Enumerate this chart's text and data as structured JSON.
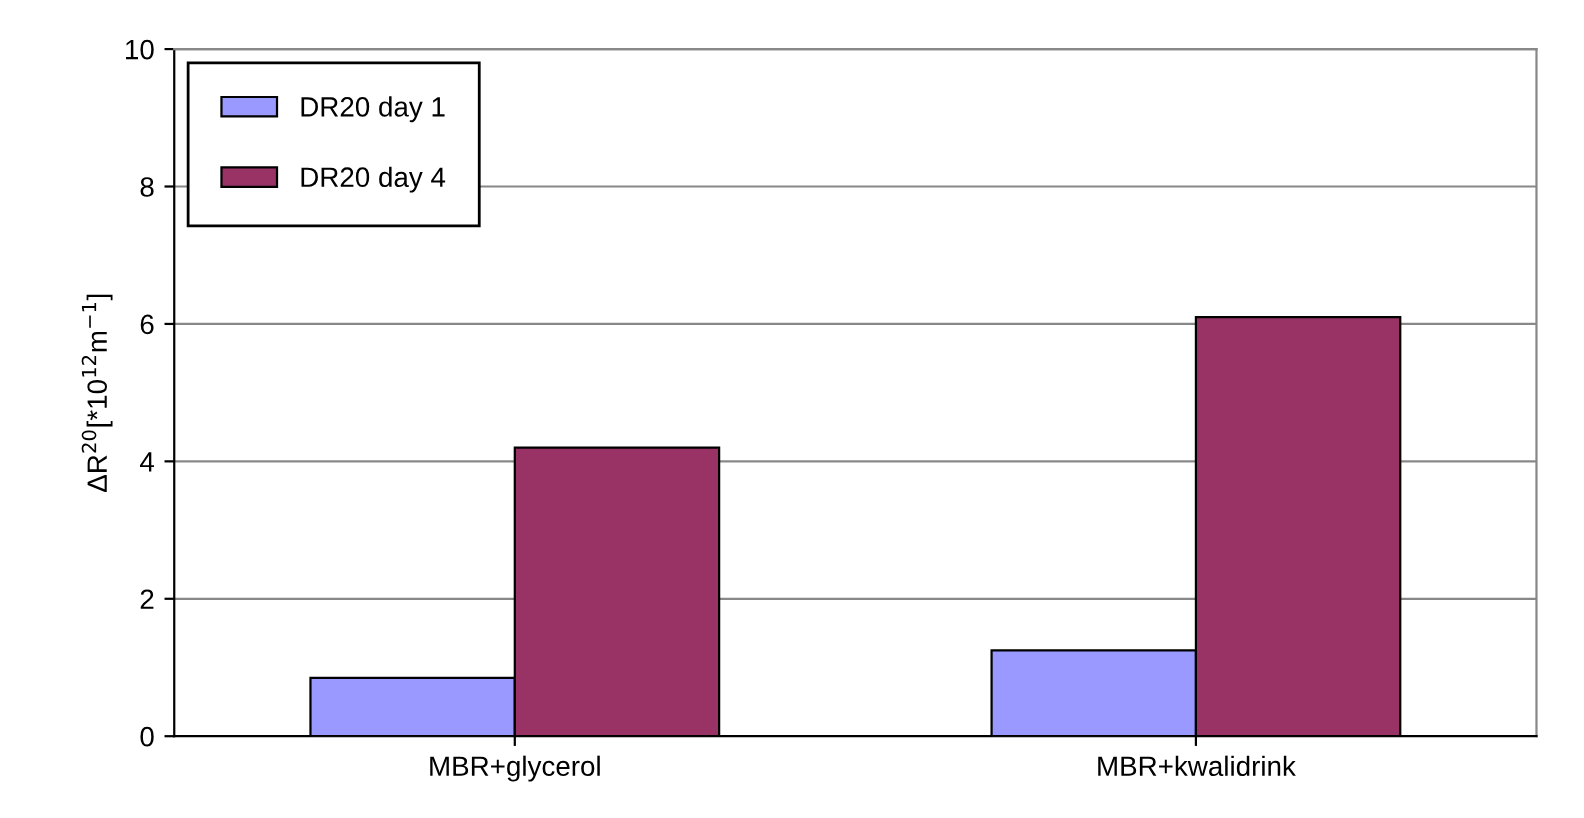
{
  "chart_data": {
    "type": "bar",
    "ylabel": "ΔR$^{20}$[*10$^{12}$m$^{−1}$]",
    "categories": [
      "MBR+glycerol",
      "MBR+kwalidrink"
    ],
    "series": [
      {
        "name": "DR20 day 1",
        "color": "#9999ff",
        "values": [
          0.85,
          1.25
        ]
      },
      {
        "name": "DR20 day 4",
        "color": "#993366",
        "values": [
          4.2,
          6.1
        ]
      }
    ],
    "ylim": [
      0,
      10
    ],
    "yticks": [
      0,
      2,
      4,
      6,
      8,
      10
    ],
    "grid": "y",
    "legend": "top left"
  }
}
